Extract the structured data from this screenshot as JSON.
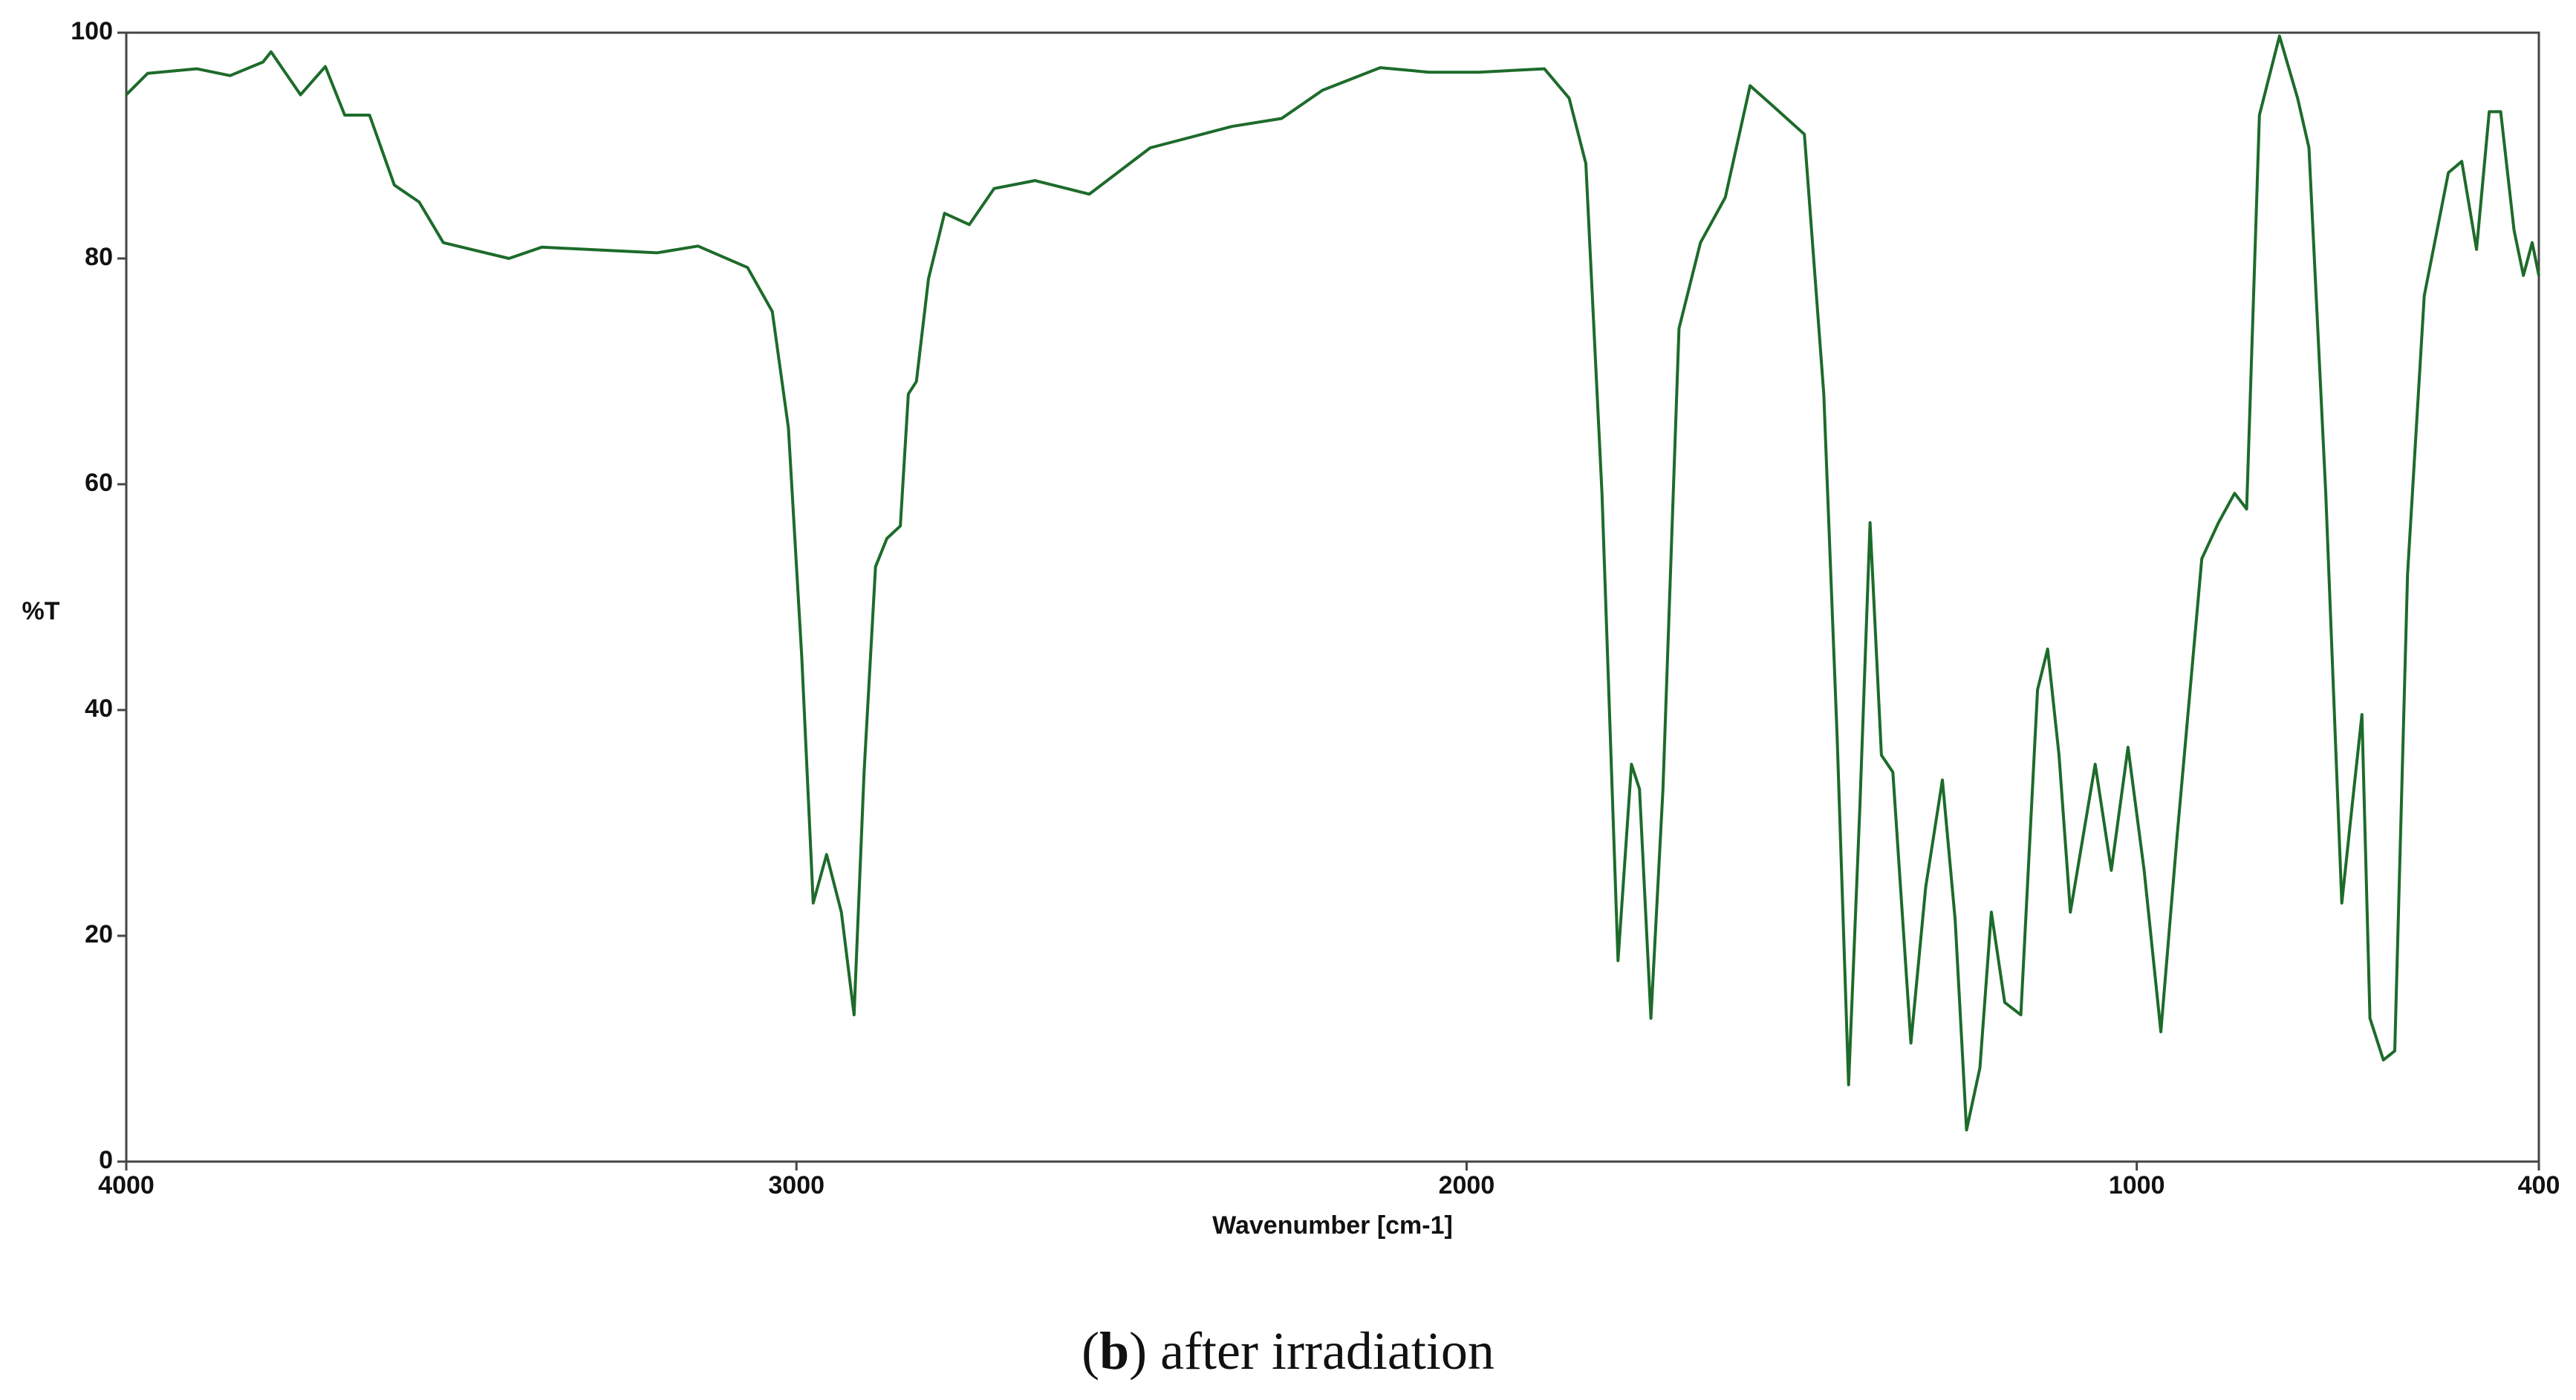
{
  "chart_data": {
    "type": "line",
    "x_label": "Wavenumber [cm-1]",
    "y_label": "%T",
    "caption": [
      "(",
      "b",
      ") after irradiation"
    ],
    "xlim": [
      4000,
      400
    ],
    "xticks": [
      4000,
      3000,
      2000,
      1000,
      400
    ],
    "ylim": [
      0,
      100
    ],
    "yticks": [
      0,
      20,
      40,
      60,
      80,
      100
    ],
    "grid": false,
    "series": [
      {
        "name": null,
        "color": "#1d6b2b",
        "x": [
          4000,
          3968,
          3895,
          3845,
          3796,
          3784,
          3740,
          3703,
          3674,
          3637,
          3600,
          3563,
          3527,
          3429,
          3380,
          3208,
          3147,
          3073,
          3036,
          3012,
          2992,
          2975,
          2955,
          2933,
          2914,
          2899,
          2882,
          2865,
          2845,
          2833,
          2821,
          2803,
          2779,
          2742,
          2705,
          2644,
          2563,
          2472,
          2350,
          2276,
          2215,
          2129,
          2056,
          1982,
          1884,
          1847,
          1822,
          1798,
          1774,
          1754,
          1742,
          1725,
          1707,
          1683,
          1651,
          1614,
          1577,
          1541,
          1496,
          1467,
          1447,
          1430,
          1413,
          1398,
          1381,
          1364,
          1337,
          1315,
          1290,
          1271,
          1254,
          1234,
          1217,
          1197,
          1173,
          1148,
          1133,
          1116,
          1099,
          1062,
          1038,
          1013,
          989,
          964,
          940,
          903,
          878,
          854,
          836,
          817,
          787,
          760,
          743,
          718,
          694,
          676,
          664,
          652,
          632,
          615,
          596,
          571,
          535,
          515,
          493,
          474,
          457,
          437,
          423,
          410,
          400
        ],
        "values": [
          94.5,
          96.4,
          96.8,
          96.2,
          97.4,
          98.3,
          94.5,
          97,
          92.7,
          92.7,
          86.5,
          85,
          81.4,
          80,
          81,
          80.5,
          81.1,
          79.2,
          75.3,
          65,
          44.7,
          22.9,
          27.2,
          22.1,
          13,
          34.5,
          52.7,
          55.2,
          56.3,
          68,
          69.1,
          78.2,
          84,
          83,
          86.2,
          86.9,
          85.7,
          89.8,
          91.7,
          92.4,
          94.9,
          96.9,
          96.5,
          96.5,
          96.8,
          94.2,
          88.4,
          59.2,
          17.8,
          35.2,
          33,
          12.7,
          33,
          73.8,
          81.4,
          85.4,
          95.3,
          93.4,
          91,
          68,
          37.4,
          6.8,
          31.6,
          56.6,
          36,
          34.5,
          10.5,
          24.3,
          33.8,
          21.4,
          2.8,
          8.3,
          22.1,
          14.1,
          13,
          41.8,
          45.4,
          36,
          22.1,
          35.2,
          25.8,
          36.7,
          25.8,
          11.5,
          28.7,
          53.4,
          56.6,
          59.2,
          57.8,
          92.7,
          99.7,
          94.2,
          89.8,
          59.2,
          22.9,
          33,
          39.6,
          12.7,
          9,
          9.8,
          52,
          76.7,
          87.6,
          88.6,
          80.8,
          93,
          93,
          82.5,
          78.5,
          81.4,
          78.5
        ]
      }
    ]
  }
}
